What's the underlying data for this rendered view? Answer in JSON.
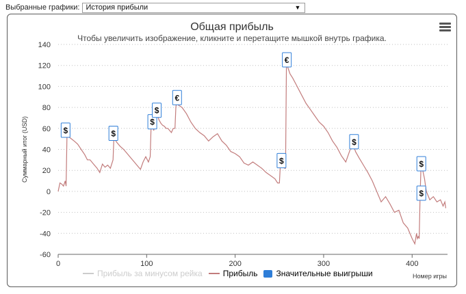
{
  "top": {
    "label": "Выбранные графики:",
    "select_value": "История прибыли"
  },
  "chart": {
    "title": "Общая прибыль",
    "subtitle": "Чтобы увеличить изображение, кликните и перетащите мышкой внутрь графика.",
    "xaxis_name": "Номер игры",
    "ylabel": "Суммарный итог (USD)"
  },
  "legend": {
    "items": [
      {
        "label": "Прибыль за минусом рейка",
        "color": "#cccccc",
        "disabled": true
      },
      {
        "label": "Прибыль",
        "color": "#c27c7c",
        "disabled": false
      },
      {
        "label": "Значительные выигрыши",
        "color": "#2f7ed8",
        "disabled": false
      }
    ]
  },
  "chart_data": {
    "type": "line",
    "title": "Общая прибыль",
    "xlabel": "Номер игры",
    "ylabel": "Суммарный итог (USD)",
    "xlim": [
      0,
      440
    ],
    "ylim": [
      -60,
      140
    ],
    "xticks": [
      0,
      100,
      200,
      300,
      400
    ],
    "yticks": [
      -60,
      -40,
      -20,
      0,
      20,
      40,
      60,
      80,
      100,
      120,
      140
    ],
    "grid": "horizontal-dotted",
    "series": [
      {
        "name": "Прибыль",
        "color": "#c27c7c",
        "x": [
          0,
          2,
          4,
          6,
          8,
          9,
          10,
          12,
          15,
          18,
          22,
          26,
          30,
          33,
          36,
          40,
          44,
          47,
          50,
          53,
          56,
          59,
          62,
          63,
          64,
          66,
          70,
          74,
          78,
          82,
          86,
          90,
          93,
          96,
          99,
          102,
          104,
          105,
          106,
          108,
          110,
          111,
          112,
          114,
          116,
          118,
          120,
          122,
          124,
          126,
          128,
          130,
          132,
          133,
          134,
          136,
          140,
          145,
          150,
          155,
          160,
          165,
          170,
          175,
          180,
          185,
          190,
          195,
          200,
          205,
          210,
          215,
          220,
          225,
          230,
          235,
          240,
          245,
          248,
          250,
          251,
          252,
          254,
          256,
          257,
          258,
          260,
          262,
          265,
          270,
          275,
          280,
          285,
          290,
          295,
          300,
          305,
          310,
          315,
          320,
          325,
          330,
          332,
          334,
          336,
          340,
          345,
          350,
          355,
          360,
          365,
          370,
          375,
          380,
          385,
          390,
          395,
          400,
          403,
          405,
          406,
          407,
          408,
          409,
          410,
          411,
          412,
          414,
          416,
          420,
          424,
          428,
          432,
          435,
          437,
          438
        ],
        "values": [
          0,
          8,
          7,
          5,
          10,
          5,
          54,
          52,
          50,
          48,
          45,
          40,
          35,
          30,
          30,
          26,
          22,
          18,
          26,
          23,
          25,
          22,
          30,
          52,
          50,
          47,
          43,
          40,
          36,
          32,
          28,
          24,
          21,
          28,
          33,
          28,
          33,
          62,
          64,
          58,
          68,
          70,
          73,
          68,
          65,
          63,
          62,
          60,
          60,
          58,
          56,
          60,
          60,
          80,
          86,
          82,
          80,
          74,
          66,
          60,
          56,
          53,
          48,
          52,
          55,
          48,
          44,
          38,
          36,
          33,
          27,
          25,
          28,
          25,
          22,
          18,
          15,
          12,
          8,
          8,
          24,
          26,
          23,
          22,
          22,
          122,
          117,
          112,
          108,
          100,
          92,
          84,
          78,
          72,
          66,
          62,
          56,
          48,
          42,
          34,
          28,
          40,
          44,
          44,
          38,
          32,
          25,
          18,
          10,
          0,
          -10,
          -5,
          -12,
          -20,
          -18,
          -30,
          -35,
          -45,
          -50,
          -40,
          -45,
          -43,
          -45,
          -5,
          23,
          22,
          20,
          12,
          0,
          -8,
          -5,
          -10,
          -8,
          -14,
          -10,
          -16
        ]
      }
    ],
    "markers": [
      {
        "x": 8,
        "y": 58,
        "symbol": "$"
      },
      {
        "x": 62,
        "y": 55,
        "symbol": "$"
      },
      {
        "x": 106,
        "y": 66,
        "symbol": "$"
      },
      {
        "x": 111,
        "y": 77,
        "symbol": "$"
      },
      {
        "x": 134,
        "y": 89,
        "symbol": "€"
      },
      {
        "x": 252,
        "y": 29,
        "symbol": "$"
      },
      {
        "x": 258,
        "y": 125,
        "symbol": "€"
      },
      {
        "x": 334,
        "y": 47,
        "symbol": "$"
      },
      {
        "x": 410,
        "y": 26,
        "symbol": "$"
      },
      {
        "x": 410,
        "y": -2,
        "symbol": "$"
      }
    ]
  }
}
